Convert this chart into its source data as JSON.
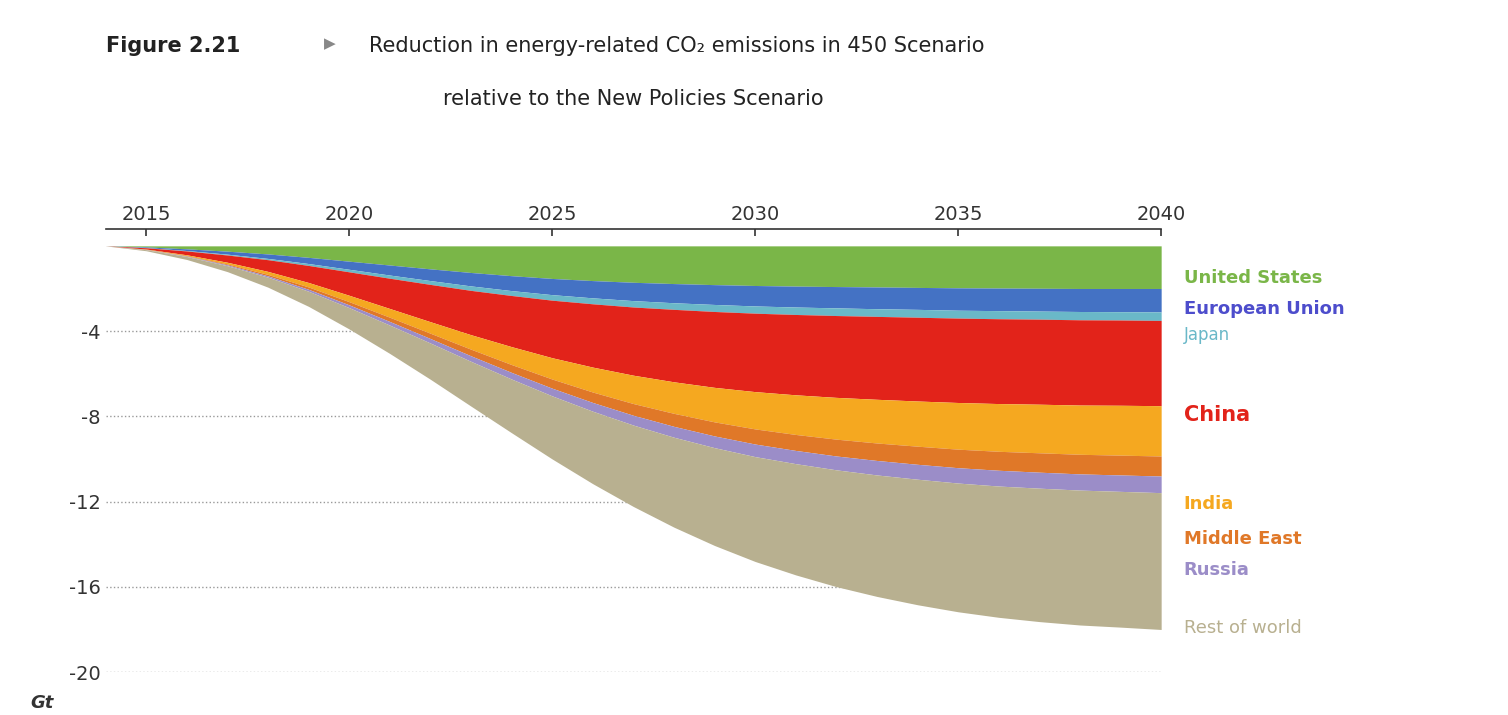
{
  "title_bold": "Figure 2.21",
  "title_arrow": " ▶  ",
  "title_main": "Reduction in energy-related CO₂ emissions in 450 Scenario",
  "title_sub": "relative to the New Policies Scenario",
  "years": [
    2014,
    2015,
    2016,
    2017,
    2018,
    2019,
    2020,
    2021,
    2022,
    2023,
    2024,
    2025,
    2026,
    2027,
    2028,
    2029,
    2030,
    2031,
    2032,
    2033,
    2034,
    2035,
    2036,
    2037,
    2038,
    2039,
    2040
  ],
  "regions": [
    "United States",
    "European Union",
    "Japan",
    "China",
    "India",
    "Middle East",
    "Russia",
    "Rest of world"
  ],
  "colors": [
    "#7ab648",
    "#4472c4",
    "#6ab8c8",
    "#e2231a",
    "#f5a820",
    "#e07828",
    "#9b8dc8",
    "#b8b090"
  ],
  "legend_text_colors": [
    "#7ab648",
    "#4d4dcc",
    "#6ab8c8",
    "#e2231a",
    "#f5a820",
    "#e07828",
    "#9b8dc8",
    "#b8b090"
  ],
  "legend_fontweights": [
    "bold",
    "bold",
    "normal",
    "bold",
    "bold",
    "bold",
    "bold",
    "normal"
  ],
  "legend_fontsizes": [
    13,
    13,
    12,
    15,
    13,
    13,
    13,
    13
  ],
  "data": {
    "United States": [
      0,
      -0.05,
      -0.14,
      -0.25,
      -0.38,
      -0.54,
      -0.72,
      -0.9,
      -1.08,
      -1.25,
      -1.4,
      -1.53,
      -1.63,
      -1.71,
      -1.77,
      -1.82,
      -1.86,
      -1.89,
      -1.91,
      -1.93,
      -1.95,
      -1.97,
      -1.98,
      -1.99,
      -2.0,
      -2.0,
      -2.0
    ],
    "European Union": [
      0,
      -0.03,
      -0.08,
      -0.14,
      -0.21,
      -0.29,
      -0.38,
      -0.47,
      -0.55,
      -0.63,
      -0.7,
      -0.76,
      -0.81,
      -0.86,
      -0.9,
      -0.93,
      -0.96,
      -0.98,
      -1.0,
      -1.02,
      -1.03,
      -1.05,
      -1.06,
      -1.07,
      -1.08,
      -1.09,
      -1.1
    ],
    "Japan": [
      0,
      -0.01,
      -0.02,
      -0.04,
      -0.06,
      -0.09,
      -0.12,
      -0.15,
      -0.18,
      -0.21,
      -0.23,
      -0.26,
      -0.28,
      -0.3,
      -0.31,
      -0.33,
      -0.34,
      -0.35,
      -0.36,
      -0.36,
      -0.37,
      -0.37,
      -0.38,
      -0.38,
      -0.39,
      -0.39,
      -0.4
    ],
    "China": [
      0,
      -0.06,
      -0.18,
      -0.34,
      -0.55,
      -0.8,
      -1.1,
      -1.42,
      -1.75,
      -2.08,
      -2.4,
      -2.7,
      -2.97,
      -3.2,
      -3.4,
      -3.56,
      -3.68,
      -3.77,
      -3.84,
      -3.89,
      -3.93,
      -3.96,
      -3.98,
      -3.99,
      -4.0,
      -4.0,
      -4.0
    ],
    "India": [
      0,
      -0.01,
      -0.04,
      -0.08,
      -0.14,
      -0.21,
      -0.3,
      -0.41,
      -0.54,
      -0.68,
      -0.84,
      -1.0,
      -1.17,
      -1.33,
      -1.48,
      -1.62,
      -1.75,
      -1.86,
      -1.96,
      -2.05,
      -2.12,
      -2.19,
      -2.24,
      -2.28,
      -2.31,
      -2.34,
      -2.36
    ],
    "Middle East": [
      0,
      -0.01,
      -0.02,
      -0.04,
      -0.07,
      -0.11,
      -0.15,
      -0.2,
      -0.25,
      -0.31,
      -0.37,
      -0.43,
      -0.49,
      -0.55,
      -0.61,
      -0.66,
      -0.71,
      -0.75,
      -0.79,
      -0.82,
      -0.85,
      -0.87,
      -0.89,
      -0.91,
      -0.92,
      -0.93,
      -0.94
    ],
    "Russia": [
      0,
      -0.01,
      -0.02,
      -0.04,
      -0.06,
      -0.09,
      -0.13,
      -0.17,
      -0.21,
      -0.26,
      -0.31,
      -0.36,
      -0.41,
      -0.46,
      -0.51,
      -0.55,
      -0.59,
      -0.62,
      -0.65,
      -0.68,
      -0.7,
      -0.72,
      -0.74,
      -0.75,
      -0.76,
      -0.77,
      -0.78
    ],
    "Rest of world": [
      0,
      -0.05,
      -0.14,
      -0.28,
      -0.47,
      -0.71,
      -1.0,
      -1.33,
      -1.7,
      -2.1,
      -2.52,
      -2.96,
      -3.4,
      -3.82,
      -4.22,
      -4.59,
      -4.92,
      -5.22,
      -5.48,
      -5.7,
      -5.89,
      -6.04,
      -6.16,
      -6.26,
      -6.33,
      -6.37,
      -6.42
    ]
  },
  "xlim": [
    2014,
    2040
  ],
  "ylim": [
    -20,
    0.8
  ],
  "xticks": [
    2015,
    2020,
    2025,
    2030,
    2035,
    2040
  ],
  "yticks": [
    0,
    -4,
    -8,
    -12,
    -16,
    -20
  ],
  "ylabel": "Gt",
  "bg_color": "#ffffff",
  "grid_color": "#999999",
  "axis_color": "#333333"
}
